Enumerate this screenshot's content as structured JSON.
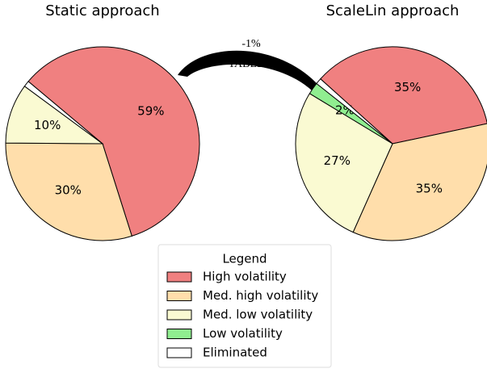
{
  "chart_data": [
    {
      "type": "pie",
      "title": "Static approach",
      "categories": [
        "High volatility",
        "Med. high volatility",
        "Med. low volatility",
        "Low volatility",
        "Eliminated"
      ],
      "values": [
        59,
        30,
        10,
        0,
        1
      ],
      "value_labels": [
        "59%",
        "30%",
        "10%",
        null,
        null
      ],
      "colors": [
        "#f08080",
        "#ffdeab",
        "#fafad2",
        "#90ee90",
        "#ffffff"
      ],
      "startangle": 140,
      "counterclock": false
    },
    {
      "type": "pie",
      "title": "ScaleLin approach",
      "categories": [
        "High volatility",
        "Med. high volatility",
        "Med. low volatility",
        "Low volatility",
        "Eliminated"
      ],
      "values": [
        35,
        35,
        27,
        2,
        1
      ],
      "value_labels": [
        "35%",
        "35%",
        "27%",
        "2%",
        null
      ],
      "colors": [
        "#f08080",
        "#ffdeab",
        "#fafad2",
        "#90ee90",
        "#ffffff"
      ],
      "startangle": 138,
      "counterclock": false
    }
  ],
  "legend_title": "Legend",
  "arrow_labels": [
    "-1%",
    "TABLE II"
  ]
}
